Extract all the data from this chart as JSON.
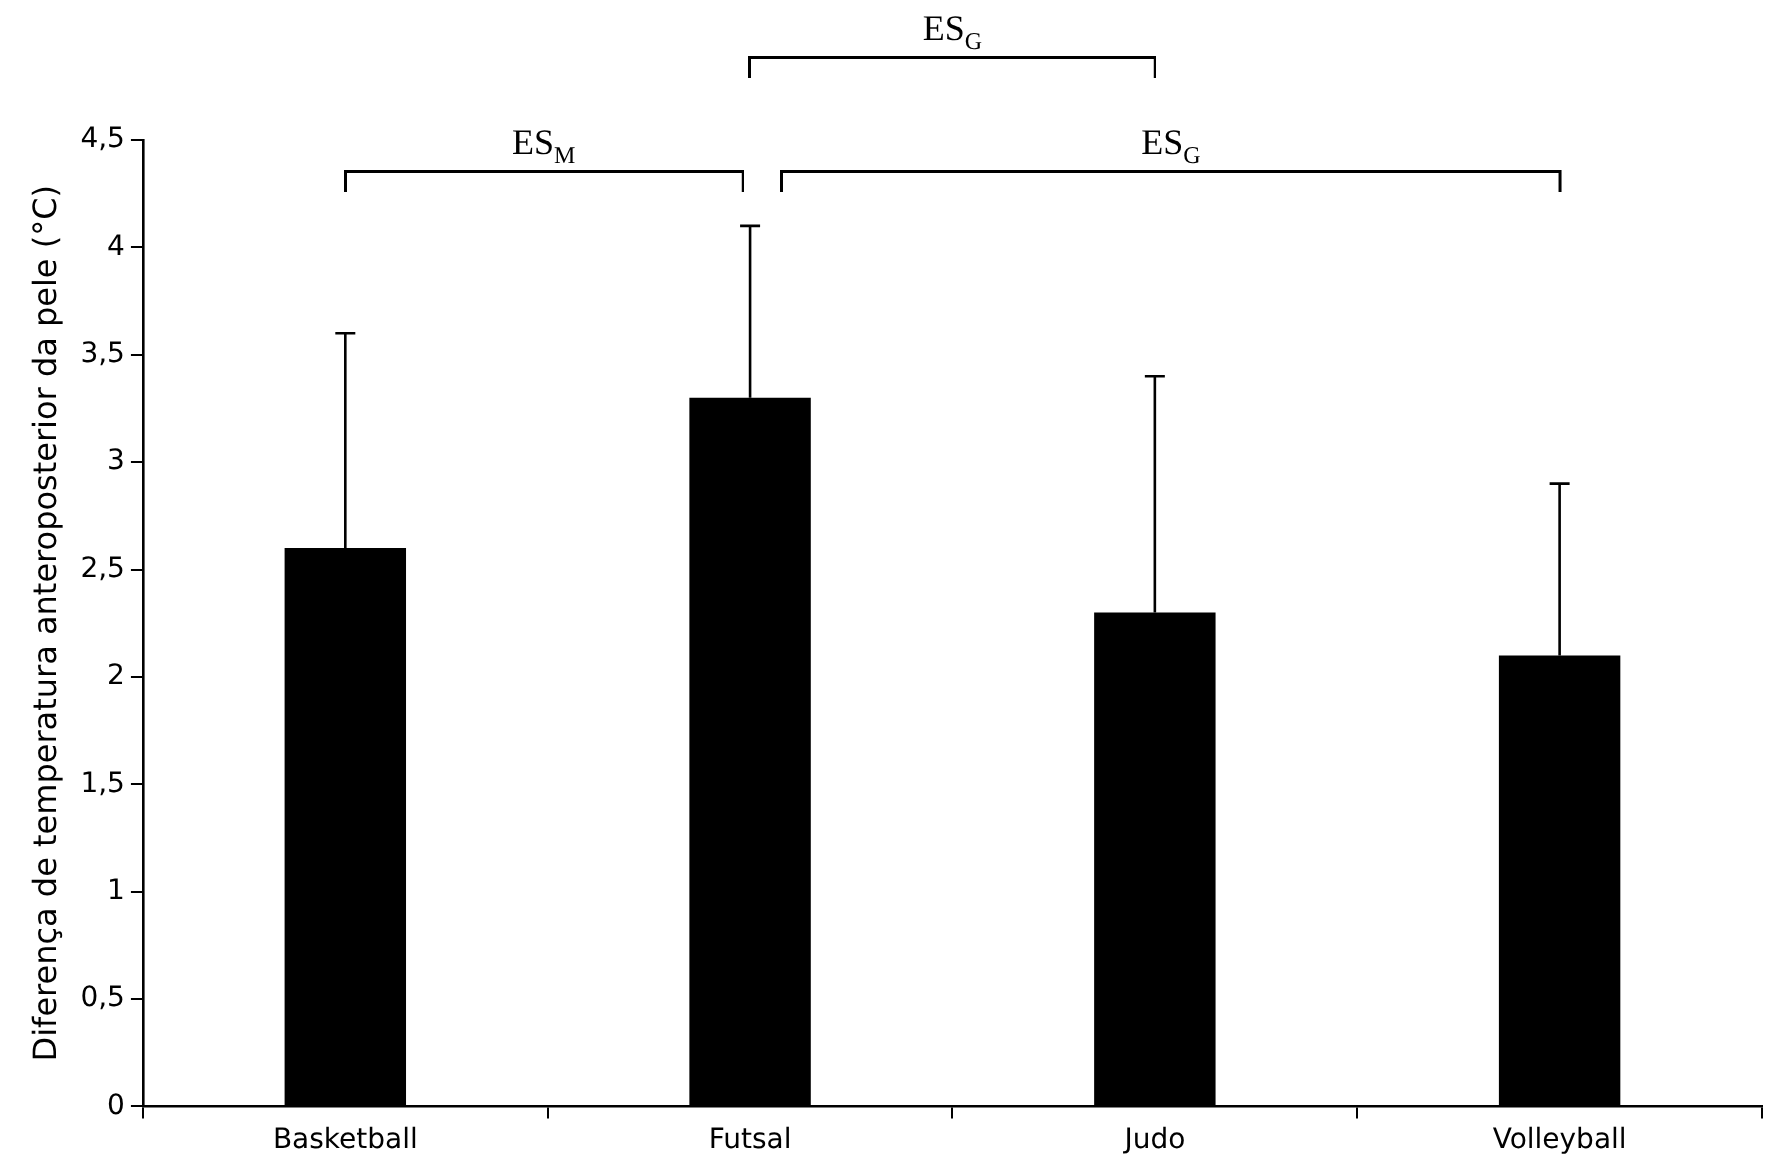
{
  "chart_data": {
    "type": "bar",
    "ylabel": "Diferença de temperatura anteroposterior da pele (°C)",
    "categories": [
      "Basketball",
      "Futsal",
      "Judo",
      "Volleyball"
    ],
    "values": [
      2.6,
      3.3,
      2.3,
      2.1
    ],
    "color": "#000000",
    "errors": [
      [
        2.6,
        3.6
      ],
      [
        3.3,
        4.1
      ],
      [
        2.3,
        3.4
      ],
      [
        2.1,
        2.9
      ]
    ],
    "ylim": [
      0,
      4.5
    ],
    "yticks": [
      0,
      {
        "value": 0.5,
        "label": "0,5"
      },
      1,
      {
        "value": 1.5,
        "label": "1,5"
      },
      2,
      {
        "value": 2.5,
        "label": "2,5"
      },
      3,
      {
        "value": 3.5,
        "label": "3,5"
      },
      4,
      {
        "value": 4.5,
        "label": "4,5"
      }
    ],
    "grid": false,
    "annotations": [
      "ES$_{M}$",
      "ES$_{G}$",
      "ES$_{G}$"
    ]
  }
}
